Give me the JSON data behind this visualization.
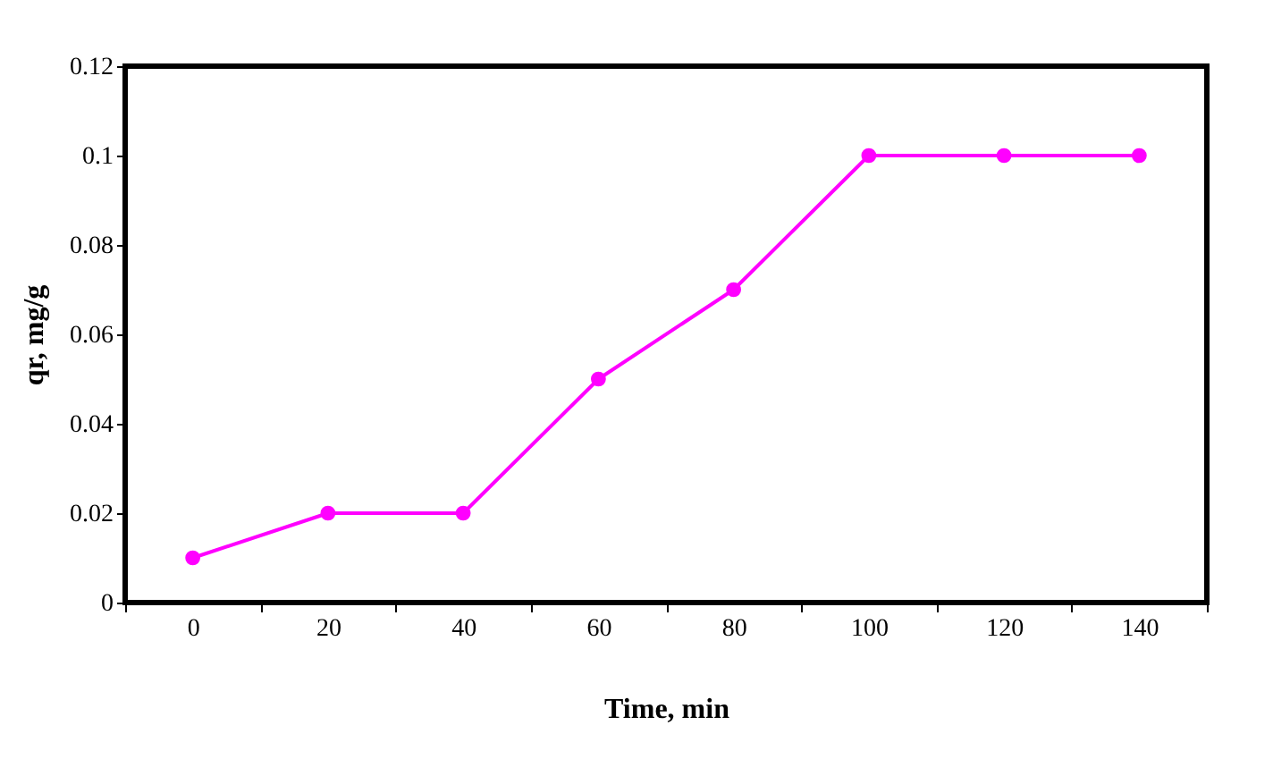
{
  "chart_data": {
    "type": "line",
    "xlabel": "Time, min",
    "ylabel": "qr, mg/g",
    "categories": [
      "0",
      "20",
      "40",
      "60",
      "80",
      "100",
      "120",
      "140"
    ],
    "series": [
      {
        "color": "#ff00ff",
        "values": [
          0.01,
          0.02,
          0.02,
          0.05,
          0.07,
          0.1,
          0.1,
          0.1
        ]
      }
    ],
    "ylim": [
      0,
      0.12
    ],
    "yticks": [
      0,
      0.02,
      0.04,
      0.06,
      0.08,
      0.1,
      0.12
    ],
    "grid": false,
    "legend": false,
    "marker": "circle",
    "line_style": "solid"
  }
}
